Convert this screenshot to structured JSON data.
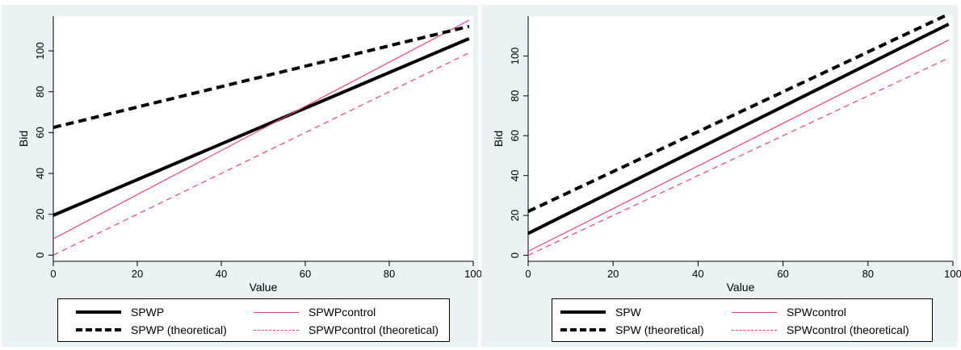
{
  "chart_data": [
    {
      "type": "line",
      "xlabel": "Value",
      "ylabel": "Bid",
      "xlim": [
        0,
        100
      ],
      "ylim": [
        -3,
        117
      ],
      "xticks": [
        0,
        20,
        40,
        60,
        80,
        100
      ],
      "yticks": [
        0,
        20,
        40,
        60,
        80,
        100
      ],
      "legend_position": "bottom",
      "grid": false,
      "series": [
        {
          "name": "SPWP",
          "color": "#000000",
          "style": "solid-thick",
          "x": [
            0,
            99
          ],
          "y": [
            19.5,
            106
          ]
        },
        {
          "name": "SPWPcontrol",
          "color": "#e8417a",
          "style": "solid-thin",
          "x": [
            0,
            99
          ],
          "y": [
            8,
            115
          ]
        },
        {
          "name": "SPWP (theoretical)",
          "color": "#000000",
          "style": "dashed-thick",
          "x": [
            0,
            99
          ],
          "y": [
            62.5,
            112
          ]
        },
        {
          "name": "SPWPcontrol (theoretical)",
          "color": "#e8417a",
          "style": "dashed-thin",
          "x": [
            0,
            99
          ],
          "y": [
            0,
            99
          ]
        }
      ]
    },
    {
      "type": "line",
      "xlabel": "Value",
      "ylabel": "Bid",
      "xlim": [
        0,
        100
      ],
      "ylim": [
        -3,
        120
      ],
      "xticks": [
        0,
        20,
        40,
        60,
        80,
        100
      ],
      "yticks": [
        0,
        20,
        40,
        60,
        80,
        100
      ],
      "legend_position": "bottom",
      "grid": false,
      "series": [
        {
          "name": "SPW",
          "color": "#000000",
          "style": "solid-thick",
          "x": [
            0,
            99
          ],
          "y": [
            11,
            116
          ]
        },
        {
          "name": "SPWcontrol",
          "color": "#e8417a",
          "style": "solid-thin",
          "x": [
            0,
            99
          ],
          "y": [
            2,
            108
          ]
        },
        {
          "name": "SPW (theoretical)",
          "color": "#000000",
          "style": "dashed-thick",
          "x": [
            0,
            99
          ],
          "y": [
            22,
            121
          ]
        },
        {
          "name": "SPWcontrol (theoretical)",
          "color": "#e8417a",
          "style": "dashed-thin",
          "x": [
            0,
            99
          ],
          "y": [
            0,
            99
          ]
        }
      ]
    }
  ]
}
